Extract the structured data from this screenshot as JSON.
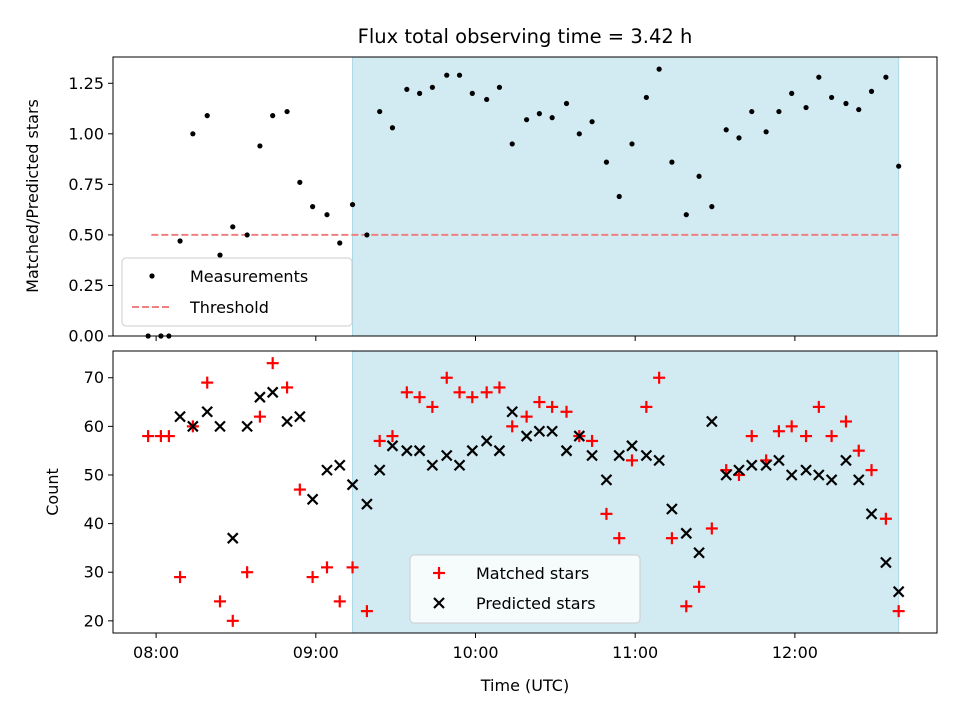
{
  "chart_data": [
    {
      "type": "scatter",
      "title": "Flux total observing time = 3.42 h",
      "ylabel": "Matched/Predicted stars",
      "xlabel": "",
      "ylim": [
        0,
        1.38
      ],
      "yticks": [
        "0.00",
        "0.25",
        "0.50",
        "0.75",
        "1.00",
        "1.25"
      ],
      "ytick_values": [
        0,
        0.25,
        0.5,
        0.75,
        1.0,
        1.25
      ],
      "legend_position": "lower-left",
      "shaded_region": {
        "x_start": 9.23,
        "x_end": 12.65,
        "color": "#add8e6"
      },
      "threshold": {
        "name": "Threshold",
        "value": 0.5,
        "x_start": 7.97,
        "x_end": 12.65,
        "color": "#f08080"
      },
      "series": [
        {
          "name": "Measurements",
          "color": "#000000",
          "marker": "dot",
          "x": [
            7.95,
            8.03,
            8.08,
            8.15,
            8.23,
            8.32,
            8.4,
            8.48,
            8.57,
            8.65,
            8.73,
            8.82,
            8.9,
            8.98,
            9.07,
            9.15,
            9.23,
            9.32,
            9.4,
            9.48,
            9.57,
            9.65,
            9.73,
            9.82,
            9.9,
            9.98,
            10.07,
            10.15,
            10.23,
            10.32,
            10.4,
            10.48,
            10.57,
            10.65,
            10.73,
            10.82,
            10.9,
            10.98,
            11.07,
            11.15,
            11.23,
            11.32,
            11.4,
            11.48,
            11.57,
            11.65,
            11.73,
            11.82,
            11.9,
            11.98,
            12.07,
            12.15,
            12.23,
            12.32,
            12.4,
            12.48,
            12.57,
            12.65
          ],
          "y": [
            0.0,
            0.0,
            0.0,
            0.47,
            1.0,
            1.09,
            0.4,
            0.54,
            0.5,
            0.94,
            1.09,
            1.11,
            0.76,
            0.64,
            0.6,
            0.46,
            0.65,
            0.5,
            1.11,
            1.03,
            1.22,
            1.2,
            1.23,
            1.29,
            1.29,
            1.2,
            1.17,
            1.23,
            0.95,
            1.07,
            1.1,
            1.08,
            1.15,
            1.0,
            1.06,
            0.86,
            0.69,
            0.95,
            1.18,
            1.32,
            0.86,
            0.6,
            0.79,
            0.64,
            1.02,
            0.98,
            1.11,
            1.01,
            1.11,
            1.2,
            1.13,
            1.28,
            1.18,
            1.15,
            1.12,
            1.21,
            1.28,
            0.84
          ]
        }
      ]
    },
    {
      "type": "scatter",
      "title": "",
      "ylabel": "Count",
      "xlabel": "Time (UTC)",
      "xlim": [
        7.73,
        12.89
      ],
      "xticks": [
        "08:00",
        "09:00",
        "10:00",
        "11:00",
        "12:00"
      ],
      "xtick_values": [
        8,
        9,
        10,
        11,
        12
      ],
      "ylim": [
        17.5,
        75.5
      ],
      "yticks": [
        "20",
        "30",
        "40",
        "50",
        "60",
        "70"
      ],
      "ytick_values": [
        20,
        30,
        40,
        50,
        60,
        70
      ],
      "legend_position": "lower-center",
      "shaded_region": {
        "x_start": 9.23,
        "x_end": 12.65,
        "color": "#add8e6"
      },
      "series": [
        {
          "name": "Matched stars",
          "color": "#ff0000",
          "marker": "plus",
          "x": [
            7.95,
            8.03,
            8.08,
            8.15,
            8.23,
            8.32,
            8.4,
            8.48,
            8.57,
            8.65,
            8.73,
            8.82,
            8.9,
            8.98,
            9.07,
            9.15,
            9.23,
            9.32,
            9.4,
            9.48,
            9.57,
            9.65,
            9.73,
            9.82,
            9.9,
            9.98,
            10.07,
            10.15,
            10.23,
            10.32,
            10.4,
            10.48,
            10.57,
            10.65,
            10.73,
            10.82,
            10.9,
            10.98,
            11.07,
            11.15,
            11.23,
            11.32,
            11.4,
            11.48,
            11.57,
            11.65,
            11.73,
            11.82,
            11.9,
            11.98,
            12.07,
            12.15,
            12.23,
            12.32,
            12.4,
            12.48,
            12.57,
            12.65
          ],
          "y": [
            58,
            58,
            58,
            29,
            60,
            69,
            24,
            20,
            30,
            62,
            73,
            68,
            47,
            29,
            31,
            24,
            31,
            22,
            57,
            58,
            67,
            66,
            64,
            70,
            67,
            66,
            67,
            68,
            60,
            62,
            65,
            64,
            63,
            58,
            57,
            42,
            37,
            53,
            64,
            70,
            37,
            23,
            27,
            39,
            51,
            50,
            58,
            53,
            59,
            60,
            58,
            64,
            58,
            61,
            55,
            51,
            41,
            22
          ]
        },
        {
          "name": "Predicted stars",
          "color": "#000000",
          "marker": "x",
          "x": [
            8.15,
            8.23,
            8.32,
            8.4,
            8.48,
            8.57,
            8.65,
            8.73,
            8.82,
            8.9,
            8.98,
            9.07,
            9.15,
            9.23,
            9.32,
            9.4,
            9.48,
            9.57,
            9.65,
            9.73,
            9.82,
            9.9,
            9.98,
            10.07,
            10.15,
            10.23,
            10.32,
            10.4,
            10.48,
            10.57,
            10.65,
            10.73,
            10.82,
            10.9,
            10.98,
            11.07,
            11.15,
            11.23,
            11.32,
            11.4,
            11.48,
            11.57,
            11.65,
            11.73,
            11.82,
            11.9,
            11.98,
            12.07,
            12.15,
            12.23,
            12.32,
            12.4,
            12.48,
            12.57,
            12.65
          ],
          "y": [
            62,
            60,
            63,
            60,
            37,
            60,
            66,
            67,
            61,
            62,
            45,
            51,
            52,
            48,
            44,
            51,
            56,
            55,
            55,
            52,
            54,
            52,
            55,
            57,
            55,
            63,
            58,
            59,
            59,
            55,
            58,
            54,
            49,
            54,
            56,
            54,
            53,
            43,
            38,
            34,
            61,
            50,
            51,
            52,
            52,
            53,
            50,
            51,
            50,
            49,
            53,
            49,
            42,
            32,
            26
          ]
        }
      ]
    }
  ]
}
